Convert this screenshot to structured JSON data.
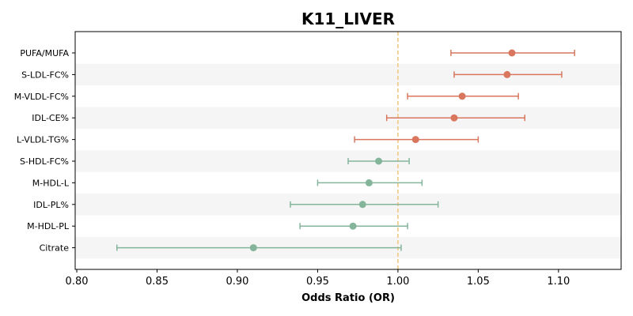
{
  "chart_data": {
    "type": "forest",
    "title": "K11_LIVER",
    "xlabel": "Odds Ratio (OR)",
    "ylabel": "",
    "xlim": [
      0.799,
      1.139
    ],
    "xticks": [
      0.8,
      0.85,
      0.9,
      0.95,
      1.0,
      1.05,
      1.1
    ],
    "xtick_labels": [
      "0.80",
      "0.85",
      "0.90",
      "0.95",
      "1.00",
      "1.05",
      "1.10"
    ],
    "reference_line": 1.0,
    "categories": [
      "PUFA/MUFA",
      "S-LDL-FC%",
      "M-VLDL-FC%",
      "IDL-CE%",
      "L-VLDL-TG%",
      "S-HDL-FC%",
      "M-HDL-L",
      "IDL-PL%",
      "M-HDL-PL",
      "Citrate"
    ],
    "or": [
      1.071,
      1.068,
      1.04,
      1.035,
      1.011,
      0.988,
      0.982,
      0.978,
      0.972,
      0.91
    ],
    "ci_lower": [
      1.033,
      1.035,
      1.006,
      0.993,
      0.973,
      0.969,
      0.95,
      0.933,
      0.939,
      0.825
    ],
    "ci_upper": [
      1.11,
      1.102,
      1.075,
      1.079,
      1.05,
      1.007,
      1.015,
      1.025,
      1.006,
      1.002
    ],
    "colors": {
      "positive": "#d9775e",
      "negative": "#84b59b",
      "reference": "#f0c877",
      "band": "#f5f5f5"
    }
  }
}
